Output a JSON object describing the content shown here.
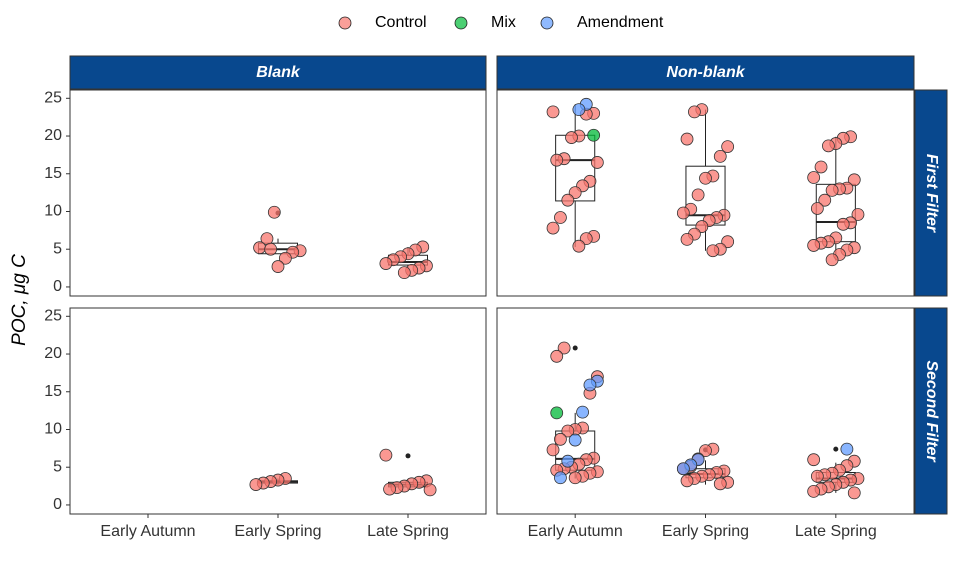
{
  "chart_data": {
    "type": "box",
    "y_label": "POC, μg C",
    "series": [
      {
        "name": "Control",
        "color": "#F8766D"
      },
      {
        "name": "Mix",
        "color": "#00BA38"
      },
      {
        "name": "Amendment",
        "color": "#619CFF"
      }
    ],
    "categories": [
      "Early Autumn",
      "Early Spring",
      "Late Spring"
    ],
    "columns": [
      "Blank",
      "Non-blank"
    ],
    "rows": [
      "First Filter",
      "Second Filter"
    ],
    "ylim": [
      -1.2,
      26.1
    ],
    "yticks": [
      0,
      5,
      10,
      15,
      20,
      25
    ],
    "strip_color": "#08488E",
    "panels": [
      [
        {
          "groups": [
            {
              "box": null,
              "outliers": [],
              "points": [
                [],
                [],
                []
              ]
            },
            {
              "box": {
                "low": 4.4,
                "q1": 4.4,
                "median": 5.0,
                "q3": 5.8,
                "high": 6.4
              },
              "outliers": [
                9.8
              ],
              "points": [
                [
                  9.9,
                  6.4,
                  5.2,
                  4.8,
                  4.6,
                  3.8,
                  2.7,
                  5.0
                ],
                [],
                []
              ]
            },
            {
              "box": {
                "low": 1.9,
                "q1": 2.9,
                "median": 3.3,
                "q3": 4.2,
                "high": 5.3
              },
              "outliers": [],
              "points": [
                [
                  5.3,
                  4.9,
                  4.4,
                  4.0,
                  3.6,
                  3.1,
                  2.8,
                  2.5,
                  2.2,
                  1.9
                ],
                [],
                []
              ]
            }
          ]
        },
        {
          "groups": [
            {
              "box": {
                "low": 5.3,
                "q1": 11.4,
                "median": 16.8,
                "q3": 20.1,
                "high": 24.2
              },
              "outliers": [],
              "points": [
                [
                  23.2,
                  23.0,
                  22.9,
                  20.0,
                  19.8,
                  17.0,
                  16.8,
                  16.5,
                  14.0,
                  13.4,
                  12.5,
                  11.5,
                  9.2,
                  7.8,
                  6.7,
                  6.4,
                  5.4
                ],
                [
                  20.1
                ],
                [
                  24.2,
                  23.5
                ]
              ]
            },
            {
              "box": {
                "low": 4.8,
                "q1": 8.2,
                "median": 9.5,
                "q3": 16.0,
                "high": 23.5
              },
              "outliers": [],
              "points": [
                [
                  23.5,
                  23.2,
                  19.6,
                  18.6,
                  17.3,
                  14.7,
                  14.4,
                  12.2,
                  10.3,
                  9.8,
                  9.5,
                  9.2,
                  8.8,
                  8.0,
                  7.0,
                  6.3,
                  6.0,
                  5.0,
                  4.8
                ],
                [],
                []
              ]
            },
            {
              "box": {
                "low": 3.5,
                "q1": 6.0,
                "median": 8.6,
                "q3": 13.6,
                "high": 19.9
              },
              "outliers": [],
              "points": [
                [
                  19.9,
                  19.7,
                  19.0,
                  18.7,
                  15.9,
                  14.5,
                  14.2,
                  13.1,
                  13.0,
                  12.8,
                  11.5,
                  10.4,
                  9.6,
                  8.5,
                  8.3,
                  6.5,
                  6.0,
                  5.8,
                  5.5,
                  5.2,
                  4.9,
                  4.3,
                  3.6
                ],
                [],
                []
              ]
            }
          ]
        }
      ],
      [
        {
          "groups": [
            {
              "box": null,
              "outliers": [],
              "points": [
                [],
                [],
                []
              ]
            },
            {
              "box": {
                "low": 2.7,
                "q1": 2.9,
                "median": 3.1,
                "q3": 3.2,
                "high": 3.5
              },
              "outliers": [],
              "points": [
                [
                  3.5,
                  3.3,
                  3.1,
                  2.9,
                  2.7
                ],
                [],
                []
              ]
            },
            {
              "box": {
                "low": 2.0,
                "q1": 2.4,
                "median": 2.7,
                "q3": 3.0,
                "high": 3.4
              },
              "outliers": [
                6.5
              ],
              "points": [
                [
                  6.6,
                  3.2,
                  3.0,
                  2.8,
                  2.5,
                  2.3,
                  2.1,
                  2.0
                ],
                [],
                []
              ]
            }
          ]
        },
        {
          "groups": [
            {
              "box": {
                "low": 3.5,
                "q1": 4.6,
                "median": 6.1,
                "q3": 9.8,
                "high": 12.2
              },
              "outliers": [
                20.8
              ],
              "points": [
                [
                  20.8,
                  19.7,
                  17.0,
                  14.8,
                  10.2,
                  10.0,
                  9.8,
                  8.7,
                  7.3,
                  6.2,
                  6.0,
                  5.4,
                  5.0,
                  4.8,
                  4.6,
                  4.4,
                  4.2,
                  3.8,
                  3.6
                ],
                [
                  12.2
                ],
                [
                  16.4,
                  15.9,
                  12.3,
                  8.6,
                  5.8,
                  3.6
                ]
              ]
            },
            {
              "box": {
                "low": 2.7,
                "q1": 3.6,
                "median": 4.1,
                "q3": 4.8,
                "high": 5.9
              },
              "outliers": [
                7.3
              ],
              "points": [
                [
                  7.4,
                  7.2,
                  6.1,
                  5.1,
                  4.8,
                  4.5,
                  4.3,
                  4.0,
                  3.8,
                  3.5,
                  3.2,
                  3.0,
                  2.8
                ],
                [],
                [
                  6.0,
                  5.3,
                  4.8
                ]
              ]
            },
            {
              "box": {
                "low": 1.6,
                "q1": 3.0,
                "median": 3.5,
                "q3": 4.3,
                "high": 5.6
              },
              "outliers": [
                7.4
              ],
              "points": [
                [
                  6.0,
                  5.8,
                  5.2,
                  4.6,
                  4.2,
                  4.0,
                  3.8,
                  3.5,
                  3.3,
                  3.0,
                  2.7,
                  2.4,
                  2.1,
                  1.8,
                  1.6
                ],
                [],
                [
                  7.4
                ]
              ]
            }
          ]
        }
      ]
    ]
  }
}
